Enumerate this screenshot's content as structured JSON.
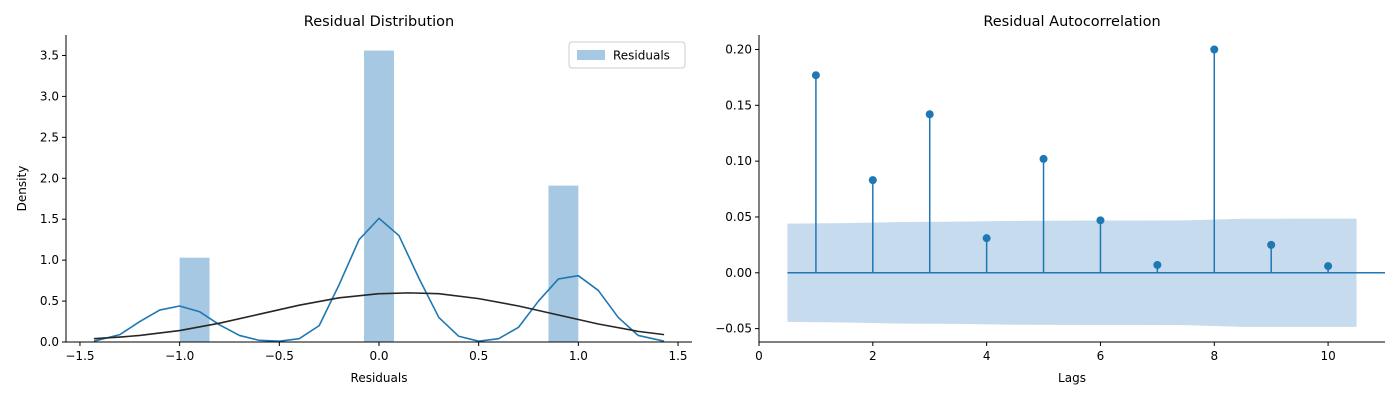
{
  "chart_data": [
    {
      "type": "bar",
      "title": "Residual Distribution",
      "xlabel": "Residuals",
      "ylabel": "Density",
      "xlim": [
        -1.57,
        1.57
      ],
      "ylim": [
        0,
        3.75
      ],
      "xticks": [
        -1.5,
        -1.0,
        -0.5,
        0.0,
        0.5,
        1.0,
        1.5
      ],
      "xtick_labels": [
        "−1.5",
        "−1.0",
        "−0.5",
        "0.0",
        "0.5",
        "1.0",
        "1.5"
      ],
      "yticks": [
        0.0,
        0.5,
        1.0,
        1.5,
        2.0,
        2.5,
        3.0,
        3.5
      ],
      "ytick_labels": [
        "0.0",
        "0.5",
        "1.0",
        "1.5",
        "2.0",
        "2.5",
        "3.0",
        "3.5"
      ],
      "legend": {
        "position": "top-right",
        "entries": [
          "Residuals"
        ]
      },
      "histogram": {
        "name": "Residuals",
        "color": "#a6c8e2",
        "bins": [
          {
            "x0": -1.0,
            "x1": -0.85,
            "density": 1.03
          },
          {
            "x0": -0.075,
            "x1": 0.075,
            "density": 3.56
          },
          {
            "x0": 0.85,
            "x1": 1.0,
            "density": 1.91
          }
        ]
      },
      "kde": {
        "color": "#1f77b4",
        "x": [
          -1.43,
          -1.3,
          -1.2,
          -1.1,
          -1.0,
          -0.9,
          -0.8,
          -0.7,
          -0.6,
          -0.5,
          -0.4,
          -0.3,
          -0.2,
          -0.1,
          0.0,
          0.1,
          0.2,
          0.3,
          0.4,
          0.5,
          0.6,
          0.7,
          0.8,
          0.9,
          1.0,
          1.1,
          1.2,
          1.3,
          1.43
        ],
        "y": [
          0.01,
          0.09,
          0.25,
          0.39,
          0.44,
          0.37,
          0.21,
          0.08,
          0.02,
          0.01,
          0.04,
          0.2,
          0.7,
          1.25,
          1.51,
          1.3,
          0.78,
          0.3,
          0.07,
          0.01,
          0.04,
          0.18,
          0.5,
          0.77,
          0.81,
          0.63,
          0.3,
          0.08,
          0.01
        ]
      },
      "normal_fit": {
        "color": "#262626",
        "x": [
          -1.43,
          -1.3,
          -1.2,
          -1.0,
          -0.8,
          -0.6,
          -0.4,
          -0.2,
          0.0,
          0.15,
          0.3,
          0.5,
          0.7,
          0.9,
          1.1,
          1.3,
          1.43
        ],
        "y": [
          0.04,
          0.06,
          0.08,
          0.14,
          0.23,
          0.34,
          0.45,
          0.54,
          0.59,
          0.6,
          0.59,
          0.53,
          0.44,
          0.33,
          0.22,
          0.13,
          0.09
        ]
      }
    },
    {
      "type": "scatter",
      "subtype": "stem",
      "title": "Residual Autocorrelation",
      "xlabel": "Lags",
      "ylabel": "",
      "xlim": [
        0,
        11
      ],
      "ylim": [
        -0.062,
        0.213
      ],
      "xticks": [
        0,
        2,
        4,
        6,
        8,
        10
      ],
      "xtick_labels": [
        "0",
        "2",
        "4",
        "6",
        "8",
        "10"
      ],
      "yticks": [
        -0.05,
        0.0,
        0.05,
        0.1,
        0.15,
        0.2
      ],
      "ytick_labels": [
        "−0.05",
        "0.00",
        "0.05",
        "0.10",
        "0.15",
        "0.20"
      ],
      "color": "#1f77b4",
      "band_color": "#c6dbed",
      "lags": [
        1,
        2,
        3,
        4,
        5,
        6,
        7,
        8,
        9,
        10
      ],
      "values": [
        0.177,
        0.083,
        0.142,
        0.031,
        0.102,
        0.047,
        0.007,
        0.2,
        0.025,
        0.006
      ],
      "confidence_band": {
        "x": [
          0.5,
          1.5,
          2.5,
          3.5,
          4.5,
          5.5,
          6.5,
          7.5,
          8.5,
          9.5,
          10.5
        ],
        "upper": [
          0.044,
          0.0445,
          0.0455,
          0.0458,
          0.0465,
          0.0467,
          0.0468,
          0.0469,
          0.0484,
          0.0485,
          0.0485
        ],
        "lower": [
          -0.044,
          -0.0445,
          -0.0455,
          -0.0458,
          -0.0465,
          -0.0467,
          -0.0468,
          -0.0469,
          -0.0484,
          -0.0485,
          -0.0485
        ]
      }
    }
  ]
}
